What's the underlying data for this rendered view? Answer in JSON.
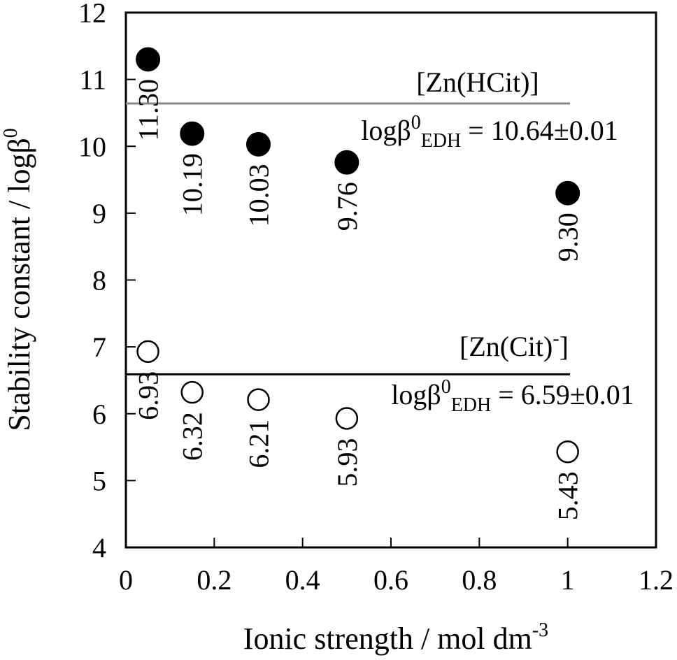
{
  "chart_data": {
    "type": "scatter",
    "xlabel": "Ionic strength / mol dm",
    "xlabel_sup": "-3",
    "ylabel": "Stability constant / logβ",
    "ylabel_sup": "0",
    "xlim": [
      0,
      1.2
    ],
    "ylim": [
      4,
      12
    ],
    "xticks": [
      "0",
      "0.2",
      "0.4",
      "0.6",
      "0.8",
      "1",
      "1.2"
    ],
    "yticks": [
      "4",
      "5",
      "6",
      "7",
      "8",
      "9",
      "10",
      "11",
      "12"
    ],
    "grid": false,
    "series": [
      {
        "name": "[Zn(HCit)]",
        "marker": "filled-circle",
        "x": [
          0.05,
          0.15,
          0.3,
          0.5,
          1.0
        ],
        "y": [
          11.3,
          10.19,
          10.03,
          9.76,
          9.3
        ],
        "labels": [
          "11.30",
          "10.19",
          "10.03",
          "9.76",
          "9.30"
        ]
      },
      {
        "name": "[Zn(Cit)-]",
        "marker": "open-circle",
        "x": [
          0.05,
          0.15,
          0.3,
          0.5,
          1.0
        ],
        "y": [
          6.93,
          6.32,
          6.21,
          5.93,
          5.43
        ],
        "labels": [
          "6.93",
          "6.32",
          "6.21",
          "5.93",
          "5.43"
        ]
      }
    ],
    "reference_lines": [
      {
        "y": 10.64,
        "color": "#888888",
        "species_text": "[Zn(HCit)]",
        "eq_prefix": "logβ",
        "eq_sup": "0",
        "eq_sub": "EDH",
        "eq_value": " = 10.64±0.01"
      },
      {
        "y": 6.59,
        "color": "#000000",
        "species_text": "[Zn(Cit)",
        "species_sup": "-",
        "species_close": "]",
        "eq_prefix": "logβ",
        "eq_sup": "0",
        "eq_sub": "EDH",
        "eq_value": " = 6.59±0.01"
      }
    ]
  }
}
